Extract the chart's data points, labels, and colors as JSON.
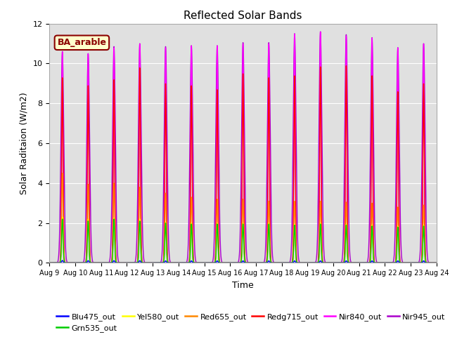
{
  "title": "Reflected Solar Bands",
  "xlabel": "Time",
  "ylabel": "Solar Raditaion (W/m2)",
  "ylim": [
    0,
    12
  ],
  "yticks": [
    0,
    2,
    4,
    6,
    8,
    10,
    12
  ],
  "xtick_labels": [
    "Aug 9",
    "Aug 10",
    "Aug 11",
    "Aug 12",
    "Aug 13",
    "Aug 14",
    "Aug 15",
    "Aug 16",
    "Aug 17",
    "Aug 18",
    "Aug 19",
    "Aug 20",
    "Aug 21",
    "Aug 22",
    "Aug 23",
    "Aug 24"
  ],
  "n_days": 15,
  "points_per_day": 288,
  "series": [
    {
      "name": "Blu475_out",
      "color": "#0000ff"
    },
    {
      "name": "Grn535_out",
      "color": "#00cc00"
    },
    {
      "name": "Yel580_out",
      "color": "#ffff00"
    },
    {
      "name": "Red655_out",
      "color": "#ff8800"
    },
    {
      "name": "Redg715_out",
      "color": "#ff0000"
    },
    {
      "name": "Nir840_out",
      "color": "#ff00ff"
    },
    {
      "name": "Nir945_out",
      "color": "#aa00cc"
    }
  ],
  "day_peaks": {
    "Blu475_out": [
      0.12,
      0.11,
      0.11,
      0.11,
      0.1,
      0.1,
      0.1,
      0.1,
      0.1,
      0.1,
      0.1,
      0.1,
      0.1,
      0.1,
      0.1
    ],
    "Grn535_out": [
      2.2,
      2.1,
      2.2,
      2.1,
      2.0,
      1.95,
      1.95,
      1.95,
      1.95,
      1.9,
      1.95,
      1.9,
      1.85,
      1.8,
      1.85
    ],
    "Yel580_out": [
      2.3,
      2.2,
      2.25,
      2.2,
      2.05,
      2.0,
      2.0,
      2.0,
      2.0,
      1.95,
      2.0,
      1.95,
      1.9,
      1.85,
      1.9
    ],
    "Red655_out": [
      4.5,
      3.95,
      4.0,
      3.8,
      3.5,
      3.3,
      3.2,
      3.2,
      3.1,
      3.1,
      3.1,
      3.05,
      3.0,
      2.8,
      2.9
    ],
    "Redg715_out": [
      9.3,
      8.9,
      9.2,
      9.8,
      9.0,
      8.9,
      8.7,
      9.5,
      9.3,
      9.4,
      9.85,
      9.9,
      9.4,
      8.6,
      9.0
    ],
    "Nir840_out": [
      10.6,
      10.5,
      10.8,
      11.0,
      10.8,
      10.9,
      10.9,
      11.0,
      11.0,
      11.5,
      11.6,
      11.4,
      11.3,
      10.8,
      11.0
    ],
    "Nir945_out": [
      10.6,
      10.5,
      10.85,
      11.0,
      10.85,
      10.9,
      10.9,
      11.05,
      11.05,
      11.5,
      11.6,
      11.45,
      11.3,
      10.8,
      11.0
    ]
  },
  "sigma_narrow": 0.028,
  "sigma_wide": 0.055,
  "annotation_text": "BA_arable",
  "background_color": "#e0e0e0",
  "fig_background": "#ffffff",
  "plot_order": [
    "Nir945_out",
    "Nir840_out",
    "Redg715_out",
    "Red655_out",
    "Yel580_out",
    "Grn535_out",
    "Blu475_out"
  ],
  "legend_order": [
    "Blu475_out",
    "Grn535_out",
    "Yel580_out",
    "Red655_out",
    "Redg715_out",
    "Nir840_out",
    "Nir945_out"
  ]
}
